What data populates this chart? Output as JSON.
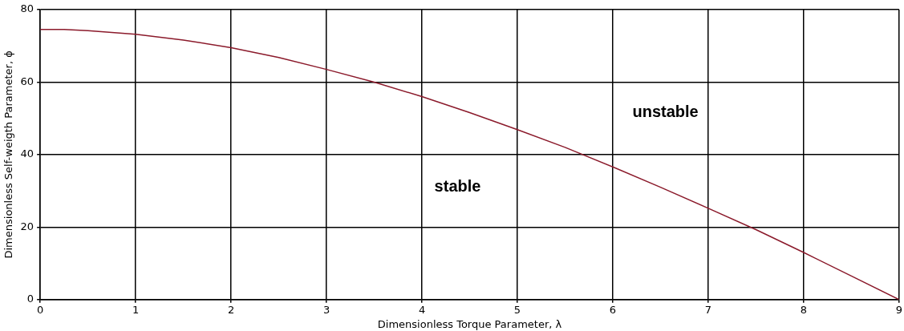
{
  "chart_data": {
    "type": "line",
    "xlabel": "Dimensionless Torque Parameter, λ",
    "ylabel": "Dimensionless Self-weigth Parameter, ϕ",
    "x": [
      0,
      0.25,
      0.5,
      1,
      1.5,
      2,
      2.5,
      3,
      3.5,
      4,
      4.5,
      5,
      5.5,
      6,
      6.5,
      7,
      7.5,
      8,
      8.5,
      9
    ],
    "series": [
      {
        "color": "#8b1a2b",
        "values": [
          74.5,
          74.5,
          74.2,
          73.2,
          71.6,
          69.5,
          66.8,
          63.5,
          60,
          56,
          51.6,
          46.9,
          42,
          36.6,
          31,
          25.2,
          19.3,
          13,
          6.5,
          0
        ]
      }
    ],
    "xlim": [
      0,
      9
    ],
    "xticks": [
      0,
      1,
      2,
      3,
      4,
      5,
      6,
      7,
      8,
      9
    ],
    "ylim": [
      0,
      80
    ],
    "yticks": [
      0,
      20,
      40,
      60,
      80
    ],
    "grid": true,
    "legend": false,
    "marker": "none",
    "line_style": "solid",
    "annotations": [
      "unstable",
      "stable"
    ]
  }
}
